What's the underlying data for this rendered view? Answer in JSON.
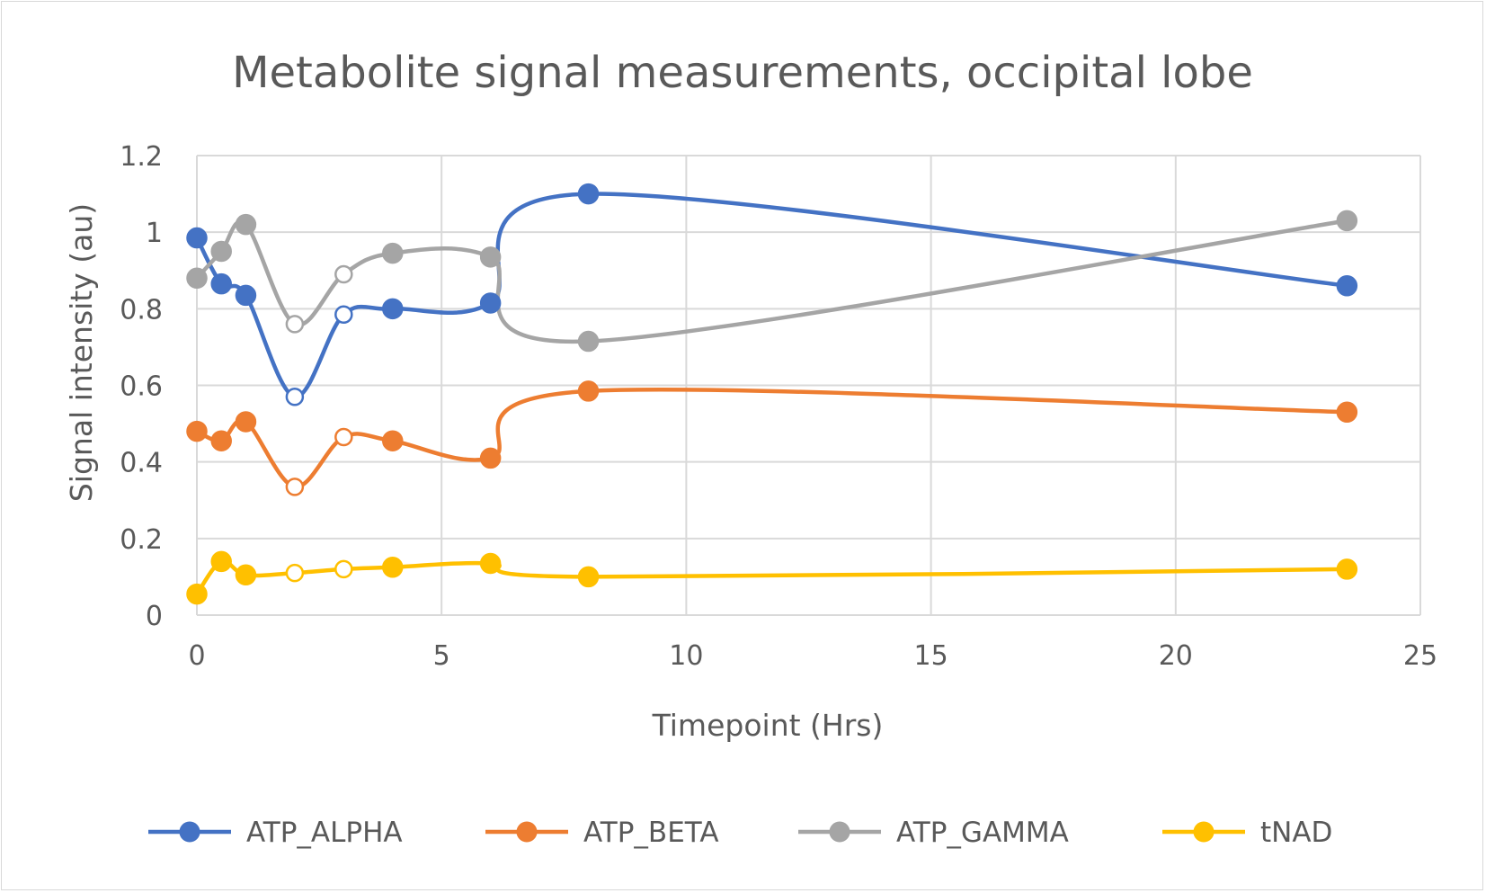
{
  "chart_data": {
    "type": "line",
    "title": "Metabolite signal measurements, occipital lobe",
    "xlabel": "Timepoint (Hrs)",
    "ylabel": "Signal intensity (au)",
    "xlim": [
      0,
      25
    ],
    "ylim": [
      0,
      1.2
    ],
    "xticks": [
      0,
      5,
      10,
      15,
      20,
      25
    ],
    "yticks": [
      0,
      0.2,
      0.4,
      0.6,
      0.8,
      1,
      1.2
    ],
    "xtick_labels": [
      "0",
      "5",
      "10",
      "15",
      "20",
      "25"
    ],
    "ytick_labels": [
      "0",
      "0.2",
      "0.4",
      "0.6",
      "0.8",
      "1",
      "1.2"
    ],
    "grid": true,
    "smooth": true,
    "legend_position": "bottom",
    "x": [
      0,
      0.5,
      1,
      2,
      3,
      4,
      6,
      8,
      23.5
    ],
    "series": [
      {
        "name": "ATP_ALPHA",
        "color": "#4472c4",
        "values": [
          0.985,
          0.865,
          0.835,
          0.57,
          0.785,
          0.8,
          0.815,
          1.1,
          0.86
        ],
        "hollow": [
          false,
          false,
          false,
          true,
          true,
          false,
          false,
          false,
          false
        ]
      },
      {
        "name": "ATP_BETA",
        "color": "#ed7d31",
        "values": [
          0.48,
          0.455,
          0.505,
          0.335,
          0.465,
          0.455,
          0.41,
          0.585,
          0.53
        ],
        "hollow": [
          false,
          false,
          false,
          true,
          true,
          false,
          false,
          false,
          false
        ]
      },
      {
        "name": "ATP_GAMMA",
        "color": "#a5a5a5",
        "values": [
          0.88,
          0.95,
          1.02,
          0.76,
          0.89,
          0.945,
          0.935,
          0.715,
          1.03
        ],
        "hollow": [
          false,
          false,
          false,
          true,
          true,
          false,
          false,
          false,
          false
        ]
      },
      {
        "name": "tNAD",
        "color": "#ffc000",
        "values": [
          0.055,
          0.14,
          0.105,
          0.11,
          0.12,
          0.125,
          0.135,
          0.1,
          0.12
        ],
        "hollow": [
          false,
          false,
          false,
          true,
          true,
          false,
          false,
          false,
          false
        ]
      }
    ]
  }
}
